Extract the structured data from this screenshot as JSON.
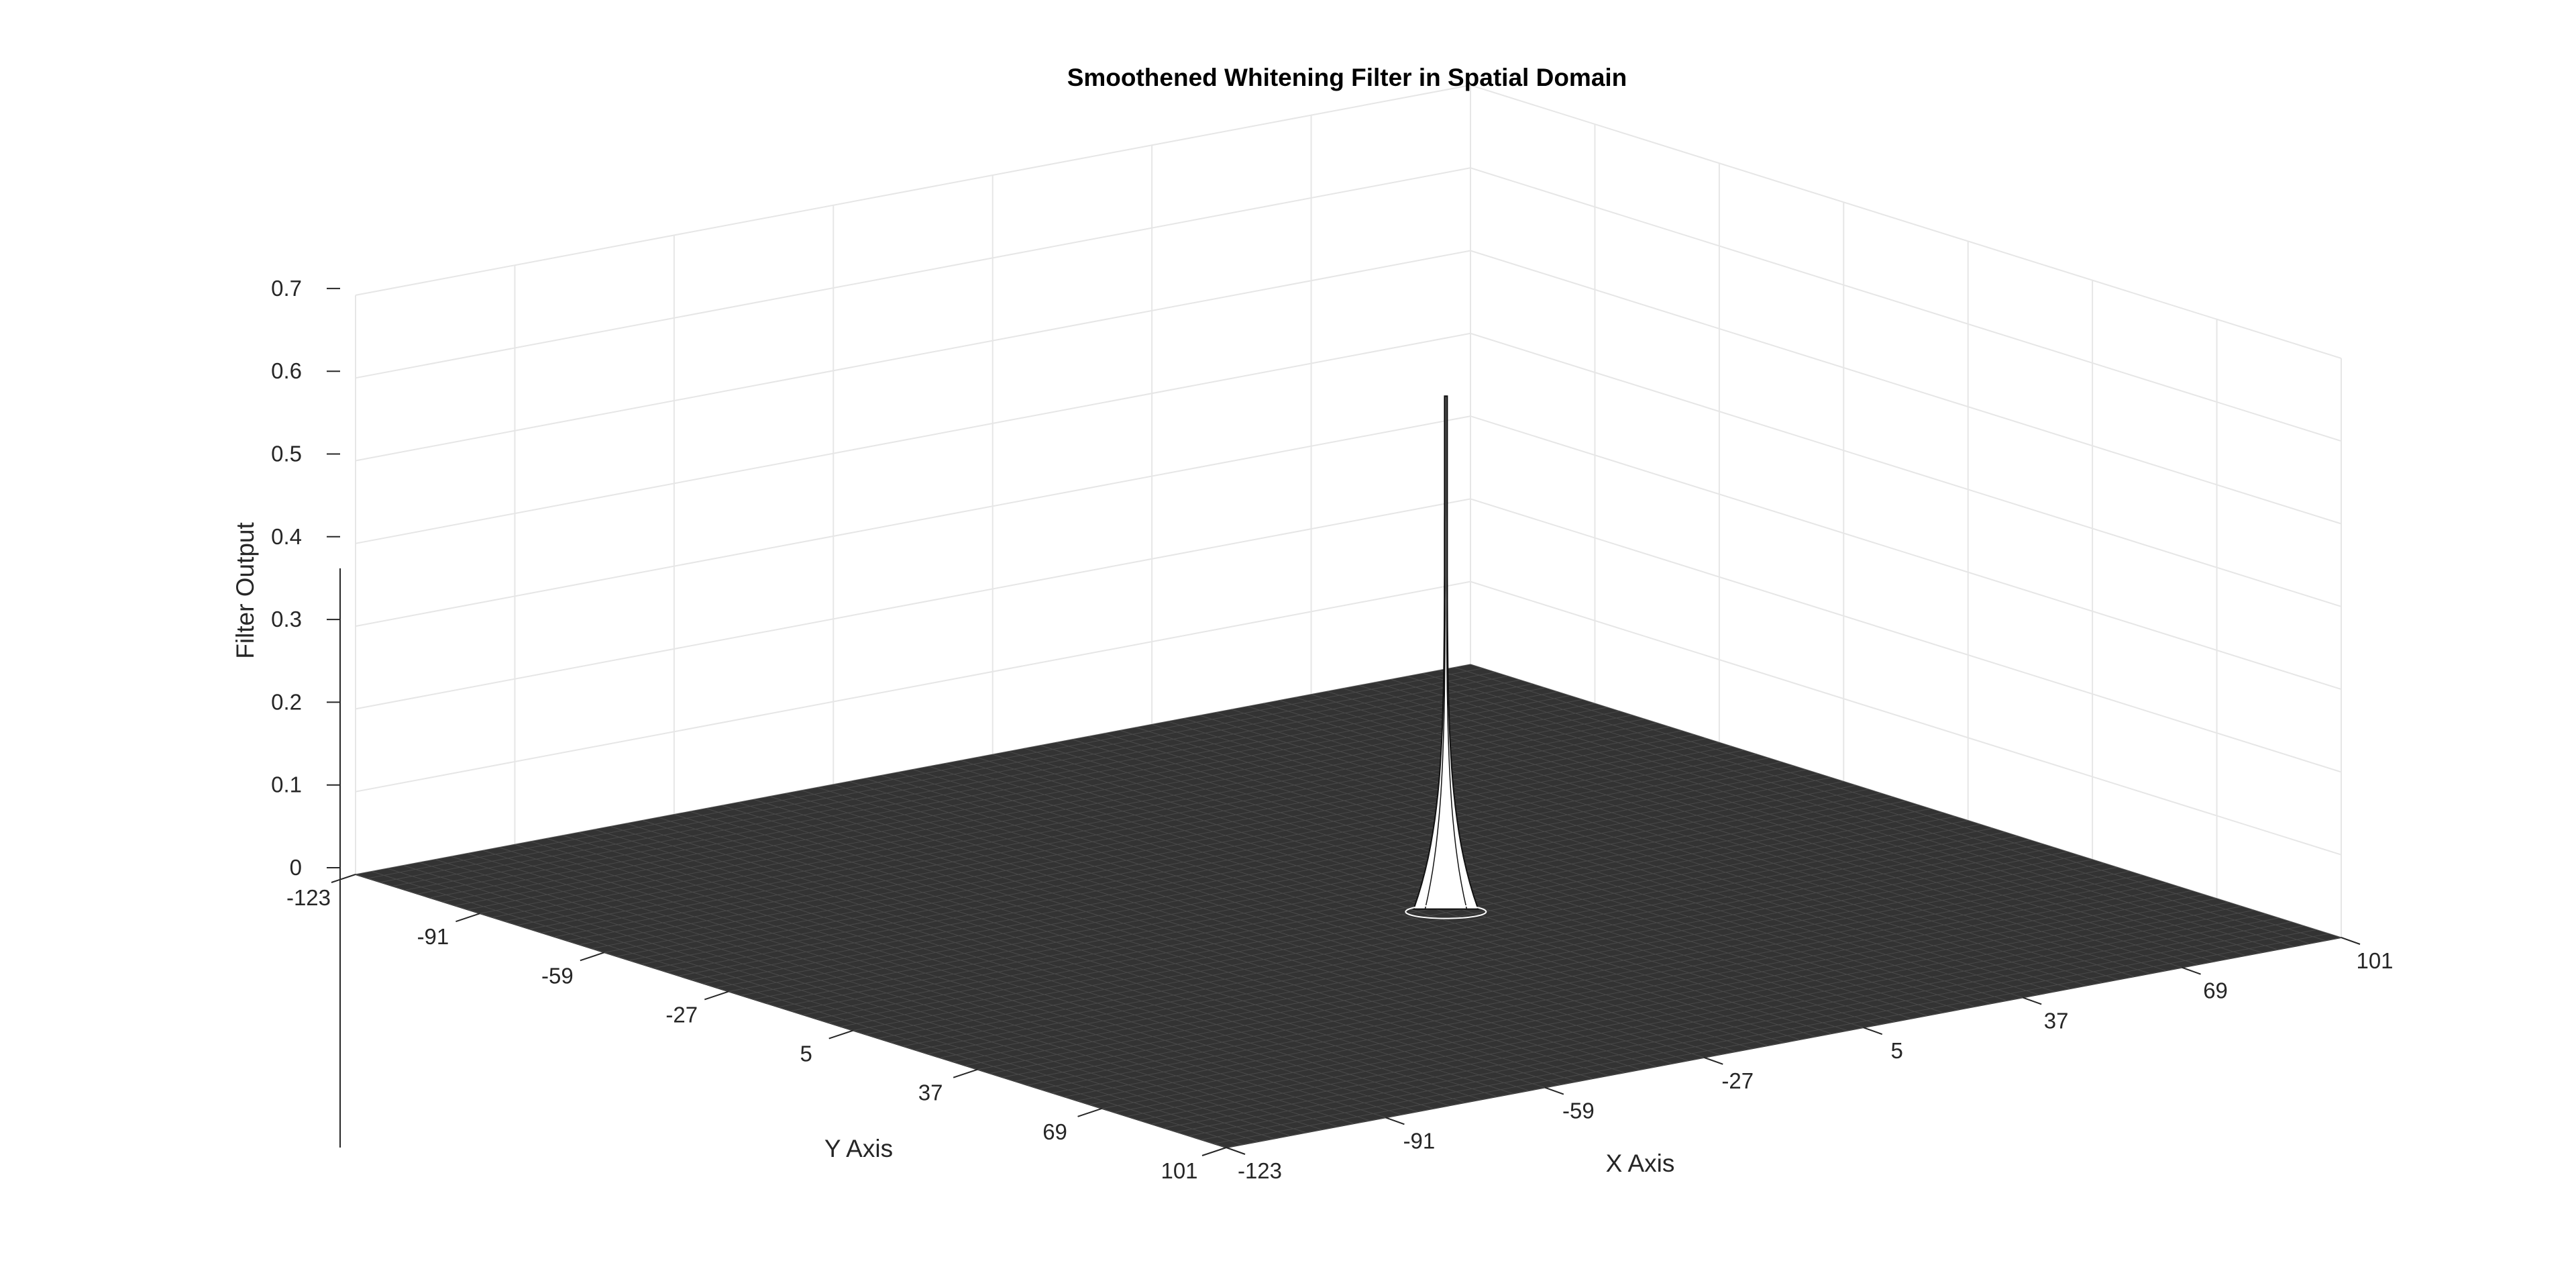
{
  "chart_data": {
    "type": "surface3d",
    "title": "Smoothened Whitening Filter in Spatial Domain",
    "xlabel": "X Axis",
    "ylabel": "Y Axis",
    "zlabel": "Filter Output",
    "x_range": [
      -123,
      101
    ],
    "y_range": [
      -123,
      101
    ],
    "zlim": [
      0,
      0.7
    ],
    "x_ticks": [
      -123,
      -91,
      -59,
      -27,
      5,
      37,
      69,
      101
    ],
    "y_ticks": [
      -123,
      -91,
      -59,
      -27,
      5,
      37,
      69,
      101
    ],
    "z_ticks": [
      0,
      0.1,
      0.2,
      0.3,
      0.4,
      0.5,
      0.6,
      0.7
    ],
    "x_tick_labels": [
      "-123",
      "-91",
      "-59",
      "-27",
      "5",
      "37",
      "69",
      "101"
    ],
    "y_tick_labels": [
      "-123",
      "-91",
      "-59",
      "-27",
      "5",
      "37",
      "69",
      "101"
    ],
    "z_tick_labels": [
      "0",
      "0.1",
      "0.2",
      "0.3",
      "0.4",
      "0.5",
      "0.6",
      "0.7"
    ],
    "surface": {
      "baseline": 0,
      "peak": {
        "x": 0,
        "y": 0,
        "z": 0.62
      },
      "shape": "narrow central spike, near-zero elsewhere",
      "face_color": "#333333",
      "edge_color": "#ffffff"
    },
    "grid": true,
    "colors": {
      "axis": "#262626",
      "grid": "#e6e6e6",
      "background": "#ffffff"
    }
  }
}
